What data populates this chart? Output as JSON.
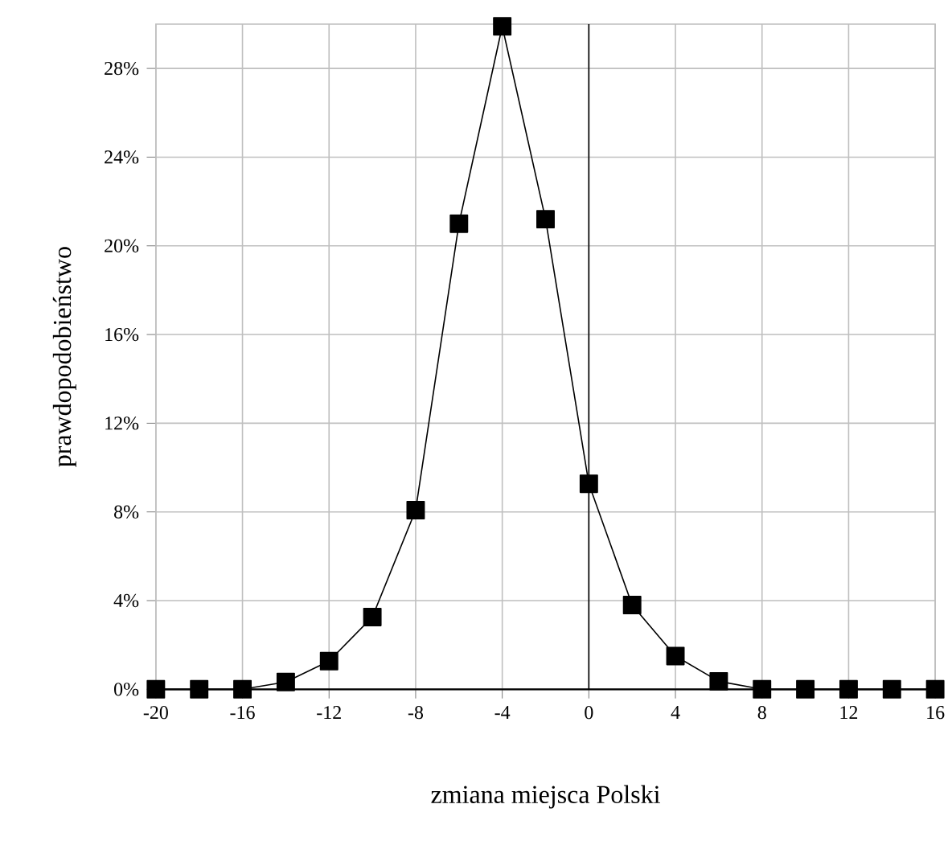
{
  "chart_data": {
    "type": "line",
    "xlabel": "zmiana miejsca Polski",
    "ylabel": "prawdopodobieństwo",
    "x": [
      -20,
      -18,
      -16,
      -14,
      -12,
      -10,
      -8,
      -6,
      -4,
      -2,
      0,
      2,
      4,
      6,
      8,
      10,
      12,
      14,
      16
    ],
    "series": [
      {
        "color": "#000000",
        "values": [
          0,
          0,
          0,
          0.33,
          1.27,
          3.26,
          8.08,
          21.0,
          29.9,
          21.2,
          9.27,
          3.8,
          1.5,
          0.36,
          0,
          0,
          0,
          0,
          0
        ]
      }
    ],
    "xlim": [
      -20,
      16
    ],
    "xticks": [
      -20,
      -16,
      -12,
      -8,
      -4,
      0,
      4,
      8,
      12,
      16
    ],
    "ylim": [
      0,
      30
    ],
    "yticks": [
      {
        "value": 0,
        "label": "0%"
      },
      {
        "value": 4,
        "label": "4%"
      },
      {
        "value": 8,
        "label": "8%"
      },
      {
        "value": 12,
        "label": "12%"
      },
      {
        "value": 16,
        "label": "16%"
      },
      {
        "value": 20,
        "label": "20%"
      },
      {
        "value": 24,
        "label": "24%"
      },
      {
        "value": 28,
        "label": "28%"
      }
    ],
    "ref_lines": [
      {
        "axis": "x",
        "value": 0,
        "color": "#000000"
      }
    ],
    "grid": true,
    "marker": "square",
    "line_style": "solid"
  }
}
